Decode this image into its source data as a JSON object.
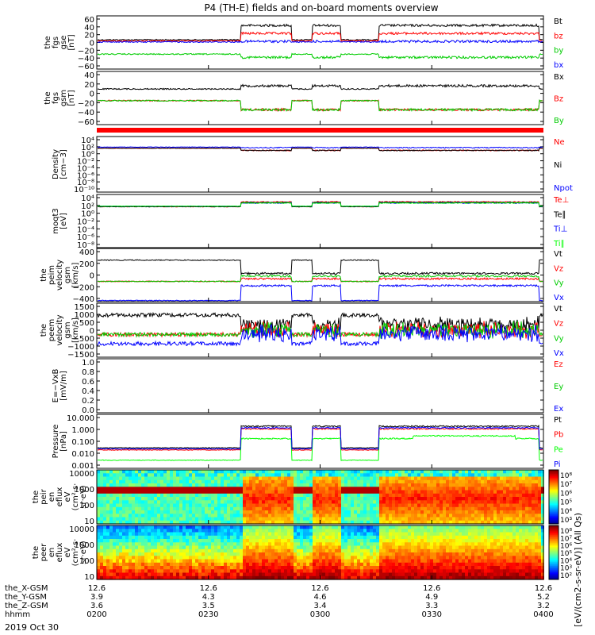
{
  "title": "P4 (TH-E) fields and on-board moments overview",
  "colors": {
    "black": "#000000",
    "red": "#ff0000",
    "green": "#00cc00",
    "blue": "#0000ff",
    "bright_green": "#00ff00"
  },
  "chart_data": [
    {
      "type": "line",
      "panel": "fgs_gse",
      "ylabel": [
        "the",
        "fgs",
        "gse",
        "[nT]"
      ],
      "yticks": [
        "60",
        "40",
        "20",
        "0",
        "−20",
        "−40",
        "−60"
      ],
      "series": [
        {
          "name": "Bt",
          "color": "black",
          "base": 4,
          "hi": 38
        },
        {
          "name": "bz",
          "color": "red",
          "base": 2,
          "hi": 18
        },
        {
          "name": "by",
          "color": "green",
          "base": -15,
          "hi": -40
        },
        {
          "name": "bx",
          "color": "blue",
          "base": 2,
          "hi": 2
        }
      ]
    },
    {
      "type": "line",
      "panel": "fgs_gsm",
      "ylabel": [
        "the",
        "fgs",
        "gsm",
        "[nT]"
      ],
      "yticks": [
        "40",
        "20",
        "0",
        "−20",
        "−40",
        "−60"
      ],
      "series": [
        {
          "name": "Bx",
          "color": "black",
          "base": -2,
          "hi": 10
        },
        {
          "name": "Bz",
          "color": "red",
          "base": -15,
          "hi": -40
        },
        {
          "name": "By",
          "color": "green",
          "base": -15,
          "hi": -40
        }
      ]
    },
    {
      "type": "line",
      "panel": "density",
      "ylabel": [
        "Density",
        "[cm−3]"
      ],
      "yticks": [
        "10⁴",
        "10²",
        "10⁰",
        "10⁻²",
        "10⁻⁴",
        "10⁻⁶",
        "10⁻⁸",
        "10⁻¹⁰"
      ],
      "series": [
        {
          "name": "Ne",
          "color": "red"
        },
        {
          "name": "Ni",
          "color": "black"
        },
        {
          "name": "Npot",
          "color": "blue"
        }
      ]
    },
    {
      "type": "line",
      "panel": "temperature",
      "ylabel": [
        "moqt3",
        "[eV]"
      ],
      "yticks": [
        "10⁴",
        "10²",
        "10⁰",
        "10⁻²",
        "10⁻⁴",
        "10⁻⁶",
        "10⁻⁸"
      ],
      "series": [
        {
          "name": "Te⊥",
          "color": "red"
        },
        {
          "name": "Te∥",
          "color": "black"
        },
        {
          "name": "Ti⊥",
          "color": "blue"
        },
        {
          "name": "Ti∥",
          "color": "bright_green"
        }
      ]
    },
    {
      "type": "line",
      "panel": "peim_velocity",
      "ylabel": [
        "the",
        "peim",
        "velocity",
        "gsm",
        "[km/s]"
      ],
      "yticks": [
        "400",
        "200",
        "0",
        "−200",
        "−400"
      ],
      "series": [
        {
          "name": "Vt",
          "color": "black"
        },
        {
          "name": "Vz",
          "color": "red"
        },
        {
          "name": "Vy",
          "color": "green"
        },
        {
          "name": "Vx",
          "color": "blue"
        }
      ]
    },
    {
      "type": "line",
      "panel": "peem_velocity",
      "ylabel": [
        "the",
        "peem",
        "velocity",
        "gsm",
        "[km/s]"
      ],
      "yticks": [
        "1500",
        "1000",
        "500",
        "0",
        "−500",
        "−1000",
        "−1500"
      ],
      "series": [
        {
          "name": "Vt",
          "color": "black"
        },
        {
          "name": "Vz",
          "color": "red"
        },
        {
          "name": "Vy",
          "color": "green"
        },
        {
          "name": "Vx",
          "color": "blue"
        }
      ]
    },
    {
      "type": "line",
      "panel": "efield",
      "ylabel": [
        "E=−VxB",
        "[mV/m]"
      ],
      "yticks": [
        "1.0",
        "0.8",
        "0.6",
        "0.4",
        "0.2",
        "0.0"
      ],
      "series": [
        {
          "name": "Ez",
          "color": "red"
        },
        {
          "name": "Ey",
          "color": "green"
        },
        {
          "name": "Ex",
          "color": "blue"
        }
      ]
    },
    {
      "type": "line",
      "panel": "pressure",
      "ylabel": [
        "Pressure",
        "[nPa]"
      ],
      "yticks": [
        "10.000",
        "1.000",
        "0.100",
        "0.010",
        "0.001"
      ],
      "series": [
        {
          "name": "Pt",
          "color": "black"
        },
        {
          "name": "Pb",
          "color": "red"
        },
        {
          "name": "Pe",
          "color": "bright_green"
        },
        {
          "name": "Pi",
          "color": "blue"
        }
      ]
    },
    {
      "type": "heatmap",
      "panel": "peir_eflux",
      "ylabel": [
        "the",
        "peir",
        "en",
        "eflux",
        "eV",
        "(cm²·s·",
        "sr·eV)"
      ],
      "yticks": [
        "10000",
        "1000",
        "100",
        "10"
      ]
    },
    {
      "type": "heatmap",
      "panel": "peer_eflux",
      "ylabel": [
        "the",
        "peer",
        "en",
        "eflux",
        "eV",
        "(cm²·s·",
        "sr·eV)"
      ],
      "yticks": [
        "10000",
        "1000",
        "100",
        "10"
      ]
    }
  ],
  "colorbars": {
    "ion": {
      "ticks": [
        "10⁸",
        "10⁷",
        "10⁶",
        "10⁵",
        "10⁴",
        "10³"
      ]
    },
    "electron": {
      "ticks": [
        "10⁸",
        "10⁷",
        "10⁶",
        "10⁵",
        "10⁴",
        "10³",
        "10²"
      ]
    },
    "label": "[eV/(cm2-s-sr-eV)] (All Qs)"
  },
  "xaxis": {
    "rows": [
      {
        "label": "the_X-GSM",
        "values": [
          "12.6",
          "12.6",
          "12.6",
          "12.6",
          "12.6"
        ]
      },
      {
        "label": "the_Y-GSM",
        "values": [
          "3.9",
          "4.3",
          "4.6",
          "4.9",
          "5.2"
        ]
      },
      {
        "label": "the_Z-GSM",
        "values": [
          "3.6",
          "3.5",
          "3.4",
          "3.3",
          "3.2"
        ]
      },
      {
        "label": "hhmm",
        "values": [
          "0200",
          "0230",
          "0300",
          "0330",
          "0400"
        ]
      }
    ],
    "date": "2019 Oct 30"
  }
}
